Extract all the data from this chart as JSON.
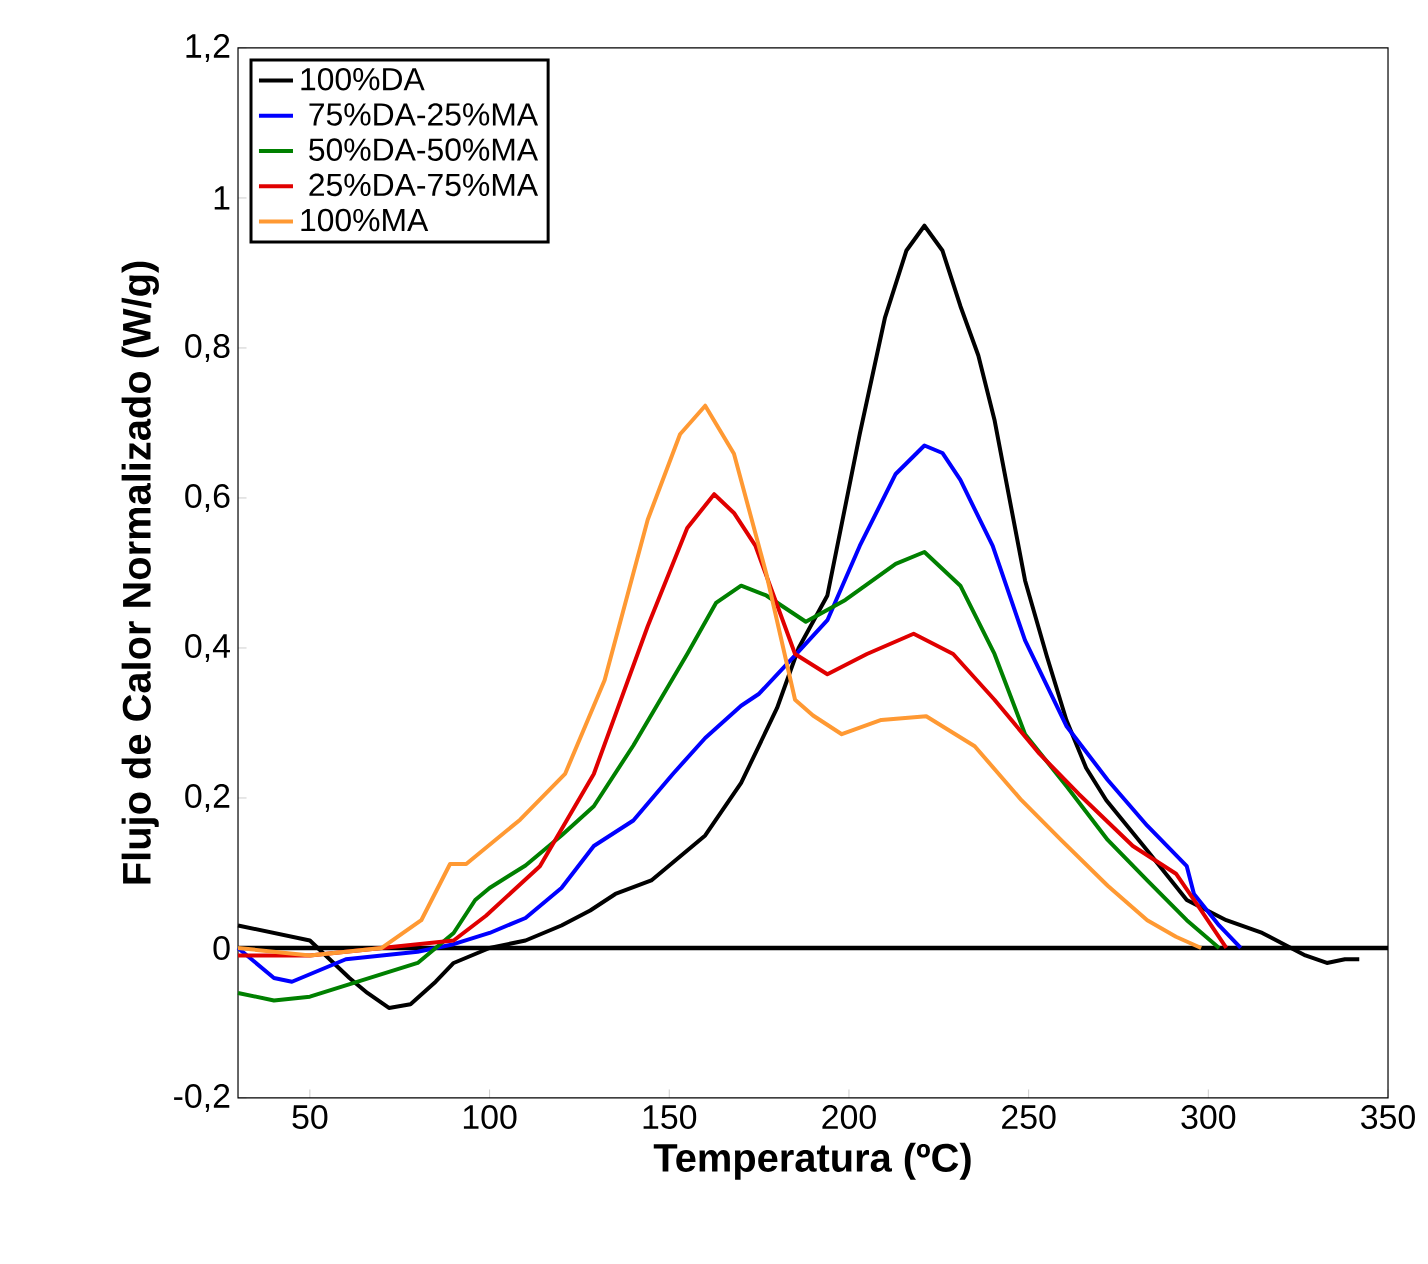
{
  "chart_data": {
    "type": "line",
    "xlabel": "Temperatura (ºC)",
    "ylabel": "Flujo de Calor Normalizado (W/g)",
    "xlim": [
      30,
      350
    ],
    "ylim": [
      -0.2,
      1.2
    ],
    "xticks": [
      50,
      100,
      150,
      200,
      250,
      300,
      350
    ],
    "yticks": [
      {
        "value": -0.2,
        "label": "-0,2"
      },
      0,
      {
        "value": 0.2,
        "label": "0,2"
      },
      {
        "value": 0.4,
        "label": "0,4"
      },
      {
        "value": 0.6,
        "label": "0,6"
      },
      {
        "value": 0.8,
        "label": "0,8"
      },
      1,
      {
        "value": 1.2,
        "label": "1,2"
      }
    ],
    "grid": false,
    "legend": "top left",
    "marker": "none",
    "line_style": "solid",
    "ref_lines": [
      {
        "axis": "y",
        "value": 0,
        "color": "#000000"
      }
    ],
    "series": [
      {
        "name": "100%DA",
        "color": "#000000",
        "x": [
          30,
          40,
          50,
          61,
          66,
          72,
          78,
          85,
          90,
          100,
          110,
          120,
          128,
          135,
          145,
          150,
          160,
          170,
          180,
          186,
          194,
          203,
          210,
          216,
          221,
          226,
          231,
          236,
          240.5,
          249,
          255,
          260.5,
          266,
          271.6,
          283,
          294,
          305,
          315,
          321,
          327,
          333,
          338,
          342
        ],
        "values": [
          0.03,
          0.02,
          0.01,
          -0.04,
          -0.06,
          -0.08,
          -0.075,
          -0.045,
          -0.02,
          0.0,
          0.01,
          0.03,
          0.05,
          0.072,
          0.09,
          0.11,
          0.15,
          0.22,
          0.32,
          0.4,
          0.47,
          0.685,
          0.84,
          0.93,
          0.963,
          0.93,
          0.856,
          0.79,
          0.704,
          0.49,
          0.39,
          0.304,
          0.24,
          0.197,
          0.13,
          0.064,
          0.037,
          0.02,
          0.005,
          -0.01,
          -0.02,
          -0.015,
          -0.015
        ]
      },
      {
        "name": " 75%DA-25%MA",
        "color": "#0000ff",
        "x": [
          30,
          35,
          40,
          45,
          50,
          60,
          70,
          80,
          90,
          100,
          110,
          120,
          129,
          140,
          151,
          160,
          170,
          175,
          185,
          194,
          203,
          213,
          221,
          226,
          231,
          240,
          249,
          260.5,
          272,
          283,
          294,
          296,
          303,
          309
        ],
        "values": [
          0.0,
          -0.02,
          -0.04,
          -0.045,
          -0.035,
          -0.015,
          -0.01,
          -0.005,
          0.005,
          0.02,
          0.04,
          0.08,
          0.136,
          0.17,
          0.232,
          0.28,
          0.323,
          0.339,
          0.39,
          0.437,
          0.536,
          0.632,
          0.67,
          0.66,
          0.624,
          0.536,
          0.41,
          0.296,
          0.224,
          0.163,
          0.109,
          0.072,
          0.03,
          0.0
        ]
      },
      {
        "name": " 50%DA-50%MA",
        "color": "#008000",
        "x": [
          30,
          40,
          50,
          60,
          70,
          80,
          90,
          96,
          100,
          110,
          120,
          129,
          140,
          155,
          163,
          170,
          177,
          188,
          199,
          213,
          221,
          231,
          240.5,
          249,
          260.5,
          272,
          283,
          294,
          303
        ],
        "values": [
          -0.06,
          -0.07,
          -0.065,
          -0.05,
          -0.035,
          -0.02,
          0.02,
          0.064,
          0.08,
          0.11,
          0.15,
          0.189,
          0.27,
          0.392,
          0.46,
          0.483,
          0.47,
          0.435,
          0.464,
          0.512,
          0.528,
          0.483,
          0.392,
          0.285,
          0.216,
          0.144,
          0.09,
          0.037,
          0.0
        ]
      },
      {
        "name": " 25%DA-75%MA",
        "color": "#e00000",
        "x": [
          30,
          50,
          70,
          90,
          99,
          114,
          129,
          144,
          155,
          162.5,
          168,
          174,
          185,
          194,
          205,
          218,
          229,
          240.5,
          253,
          264,
          279,
          291,
          298,
          305
        ],
        "values": [
          -0.01,
          -0.01,
          0.0,
          0.01,
          0.043,
          0.109,
          0.232,
          0.429,
          0.56,
          0.605,
          0.58,
          0.536,
          0.392,
          0.365,
          0.392,
          0.419,
          0.392,
          0.331,
          0.259,
          0.205,
          0.136,
          0.099,
          0.05,
          0.0
        ]
      },
      {
        "name": "100%MA",
        "color": "#ff9933",
        "x": [
          30,
          50,
          70,
          81,
          89,
          93.5,
          108.5,
          121,
          132,
          144,
          153,
          160,
          168,
          177,
          185,
          190,
          198,
          209,
          221.5,
          235,
          248,
          259,
          272,
          283,
          291,
          298
        ],
        "values": [
          0.0,
          -0.01,
          0.0,
          0.037,
          0.112,
          0.112,
          0.171,
          0.232,
          0.357,
          0.571,
          0.685,
          0.723,
          0.659,
          0.499,
          0.331,
          0.31,
          0.285,
          0.304,
          0.309,
          0.269,
          0.197,
          0.144,
          0.083,
          0.037,
          0.015,
          0.0
        ]
      }
    ]
  }
}
